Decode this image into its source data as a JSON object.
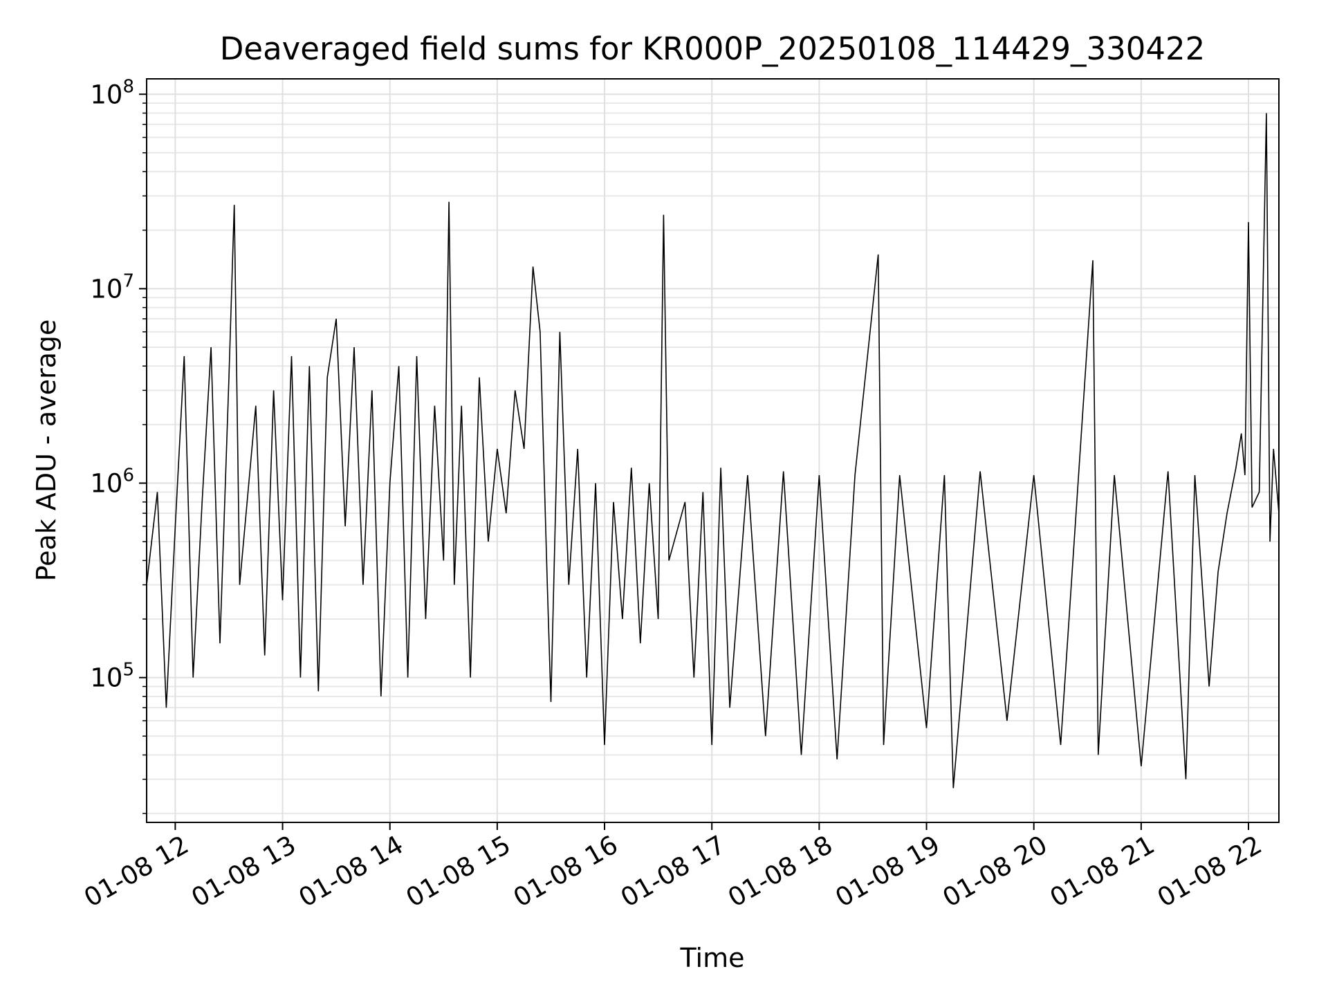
{
  "chart_data": {
    "type": "line",
    "title": "Deaveraged field sums for KR000P_20250108_114429_330422",
    "xlabel": "Time",
    "ylabel": "Peak ADU - average",
    "xscale": "time",
    "yscale": "log",
    "xlim": [
      "2025-01-08 11:44",
      "2025-01-08 22:17"
    ],
    "ylim": [
      18000,
      120000000
    ],
    "grid": true,
    "line_color": "#000000",
    "x_ticks": [
      "01-08 12",
      "01-08 13",
      "01-08 14",
      "01-08 15",
      "01-08 16",
      "01-08 17",
      "01-08 18",
      "01-08 19",
      "01-08 20",
      "01-08 21",
      "01-08 22"
    ],
    "y_ticks": [
      {
        "base": "10",
        "exp": "5",
        "value": 100000
      },
      {
        "base": "10",
        "exp": "6",
        "value": 1000000
      },
      {
        "base": "10",
        "exp": "7",
        "value": 10000000
      },
      {
        "base": "10",
        "exp": "8",
        "value": 100000000
      }
    ],
    "series": [
      {
        "points": [
          [
            "2025-01-08 11:44",
            300000
          ],
          [
            "2025-01-08 11:50",
            900000
          ],
          [
            "2025-01-08 11:55",
            70000
          ],
          [
            "2025-01-08 12:00",
            600000
          ],
          [
            "2025-01-08 12:05",
            4500000
          ],
          [
            "2025-01-08 12:10",
            100000
          ],
          [
            "2025-01-08 12:15",
            800000
          ],
          [
            "2025-01-08 12:20",
            5000000
          ],
          [
            "2025-01-08 12:25",
            150000
          ],
          [
            "2025-01-08 12:30",
            3500000
          ],
          [
            "2025-01-08 12:33",
            27000000
          ],
          [
            "2025-01-08 12:36",
            300000
          ],
          [
            "2025-01-08 12:45",
            2500000
          ],
          [
            "2025-01-08 12:50",
            130000
          ],
          [
            "2025-01-08 12:55",
            3000000
          ],
          [
            "2025-01-08 13:00",
            250000
          ],
          [
            "2025-01-08 13:05",
            4500000
          ],
          [
            "2025-01-08 13:10",
            100000
          ],
          [
            "2025-01-08 13:15",
            4000000
          ],
          [
            "2025-01-08 13:20",
            85000
          ],
          [
            "2025-01-08 13:25",
            3500000
          ],
          [
            "2025-01-08 13:30",
            7000000
          ],
          [
            "2025-01-08 13:35",
            600000
          ],
          [
            "2025-01-08 13:40",
            5000000
          ],
          [
            "2025-01-08 13:45",
            300000
          ],
          [
            "2025-01-08 13:50",
            3000000
          ],
          [
            "2025-01-08 13:55",
            80000
          ],
          [
            "2025-01-08 14:00",
            1000000
          ],
          [
            "2025-01-08 14:05",
            4000000
          ],
          [
            "2025-01-08 14:10",
            100000
          ],
          [
            "2025-01-08 14:15",
            4500000
          ],
          [
            "2025-01-08 14:20",
            200000
          ],
          [
            "2025-01-08 14:25",
            2500000
          ],
          [
            "2025-01-08 14:30",
            400000
          ],
          [
            "2025-01-08 14:33",
            28000000
          ],
          [
            "2025-01-08 14:36",
            300000
          ],
          [
            "2025-01-08 14:40",
            2500000
          ],
          [
            "2025-01-08 14:45",
            100000
          ],
          [
            "2025-01-08 14:50",
            3500000
          ],
          [
            "2025-01-08 14:55",
            500000
          ],
          [
            "2025-01-08 15:00",
            1500000
          ],
          [
            "2025-01-08 15:05",
            700000
          ],
          [
            "2025-01-08 15:10",
            3000000
          ],
          [
            "2025-01-08 15:15",
            1500000
          ],
          [
            "2025-01-08 15:20",
            13000000
          ],
          [
            "2025-01-08 15:24",
            6000000
          ],
          [
            "2025-01-08 15:28",
            300000
          ],
          [
            "2025-01-08 15:30",
            75000
          ],
          [
            "2025-01-08 15:35",
            6000000
          ],
          [
            "2025-01-08 15:40",
            300000
          ],
          [
            "2025-01-08 15:45",
            1500000
          ],
          [
            "2025-01-08 15:50",
            100000
          ],
          [
            "2025-01-08 15:55",
            1000000
          ],
          [
            "2025-01-08 16:00",
            45000
          ],
          [
            "2025-01-08 16:05",
            800000
          ],
          [
            "2025-01-08 16:10",
            200000
          ],
          [
            "2025-01-08 16:15",
            1200000
          ],
          [
            "2025-01-08 16:20",
            150000
          ],
          [
            "2025-01-08 16:25",
            1000000
          ],
          [
            "2025-01-08 16:30",
            200000
          ],
          [
            "2025-01-08 16:33",
            24000000
          ],
          [
            "2025-01-08 16:36",
            400000
          ],
          [
            "2025-01-08 16:45",
            800000
          ],
          [
            "2025-01-08 16:50",
            100000
          ],
          [
            "2025-01-08 16:55",
            900000
          ],
          [
            "2025-01-08 17:00",
            45000
          ],
          [
            "2025-01-08 17:05",
            1200000
          ],
          [
            "2025-01-08 17:10",
            70000
          ],
          [
            "2025-01-08 17:20",
            1100000
          ],
          [
            "2025-01-08 17:30",
            50000
          ],
          [
            "2025-01-08 17:40",
            1150000
          ],
          [
            "2025-01-08 17:50",
            40000
          ],
          [
            "2025-01-08 18:00",
            1100000
          ],
          [
            "2025-01-08 18:10",
            38000
          ],
          [
            "2025-01-08 18:20",
            1100000
          ],
          [
            "2025-01-08 18:33",
            15000000
          ],
          [
            "2025-01-08 18:36",
            45000
          ],
          [
            "2025-01-08 18:45",
            1100000
          ],
          [
            "2025-01-08 19:00",
            55000
          ],
          [
            "2025-01-08 19:10",
            1100000
          ],
          [
            "2025-01-08 19:15",
            27000
          ],
          [
            "2025-01-08 19:30",
            1150000
          ],
          [
            "2025-01-08 19:45",
            60000
          ],
          [
            "2025-01-08 20:00",
            1100000
          ],
          [
            "2025-01-08 20:15",
            45000
          ],
          [
            "2025-01-08 20:33",
            14000000
          ],
          [
            "2025-01-08 20:36",
            40000
          ],
          [
            "2025-01-08 20:45",
            1100000
          ],
          [
            "2025-01-08 21:00",
            35000
          ],
          [
            "2025-01-08 21:15",
            1150000
          ],
          [
            "2025-01-08 21:25",
            30000
          ],
          [
            "2025-01-08 21:30",
            1100000
          ],
          [
            "2025-01-08 21:38",
            90000
          ],
          [
            "2025-01-08 21:43",
            350000
          ],
          [
            "2025-01-08 21:48",
            700000
          ],
          [
            "2025-01-08 21:53",
            1200000
          ],
          [
            "2025-01-08 21:56",
            1800000
          ],
          [
            "2025-01-08 21:58",
            1100000
          ],
          [
            "2025-01-08 22:00",
            22000000
          ],
          [
            "2025-01-08 22:02",
            750000
          ],
          [
            "2025-01-08 22:06",
            900000
          ],
          [
            "2025-01-08 22:10",
            80000000
          ],
          [
            "2025-01-08 22:12",
            500000
          ],
          [
            "2025-01-08 22:14",
            1500000
          ],
          [
            "2025-01-08 22:17",
            700000
          ]
        ]
      }
    ]
  }
}
